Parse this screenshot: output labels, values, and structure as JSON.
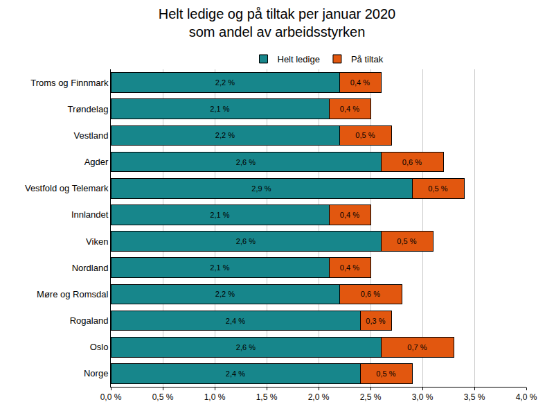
{
  "chart_data": {
    "type": "bar",
    "orientation": "horizontal",
    "stacked": true,
    "title": "Helt ledige og på tiltak per januar 2020\nsom andel av arbeidsstyrken",
    "categories": [
      "Troms og Finnmark",
      "Trøndelag",
      "Vestland",
      "Agder",
      "Vestfold og Telemark",
      "Innlandet",
      "Viken",
      "Nordland",
      "Møre og Romsdal",
      "Rogaland",
      "Oslo",
      "Norge"
    ],
    "series": [
      {
        "name": "Helt ledige",
        "color": "#17868b",
        "values": [
          2.2,
          2.1,
          2.2,
          2.6,
          2.9,
          2.1,
          2.6,
          2.1,
          2.2,
          2.4,
          2.6,
          2.4
        ],
        "value_labels": [
          "2,2 %",
          "2,1 %",
          "2,2 %",
          "2,6 %",
          "2,9 %",
          "2,1 %",
          "2,6 %",
          "2,1 %",
          "2,2 %",
          "2,4 %",
          "2,6 %",
          "2,4 %"
        ]
      },
      {
        "name": "På tiltak",
        "color": "#e2570f",
        "values": [
          0.4,
          0.4,
          0.5,
          0.6,
          0.5,
          0.4,
          0.5,
          0.4,
          0.6,
          0.3,
          0.7,
          0.5
        ],
        "value_labels": [
          "0,4 %",
          "0,4 %",
          "0,5 %",
          "0,6 %",
          "0,5 %",
          "0,4 %",
          "0,5 %",
          "0,4 %",
          "0,6 %",
          "0,3 %",
          "0,7 %",
          "0,5 %"
        ]
      }
    ],
    "xlim": [
      0,
      4
    ],
    "xticks": [
      {
        "value": 0,
        "label": "0,0 %"
      },
      {
        "value": 0.5,
        "label": "0,5 %"
      },
      {
        "value": 1,
        "label": "1,0 %"
      },
      {
        "value": 1.5,
        "label": "1,5 %"
      },
      {
        "value": 2,
        "label": "2,0 %"
      },
      {
        "value": 2.5,
        "label": "2,5 %"
      },
      {
        "value": 3,
        "label": "3,0 %"
      },
      {
        "value": 3.5,
        "label": "3,5 %"
      },
      {
        "value": 4,
        "label": "4,0 %"
      }
    ],
    "grid": true,
    "legend": "top",
    "data_labels": true
  }
}
